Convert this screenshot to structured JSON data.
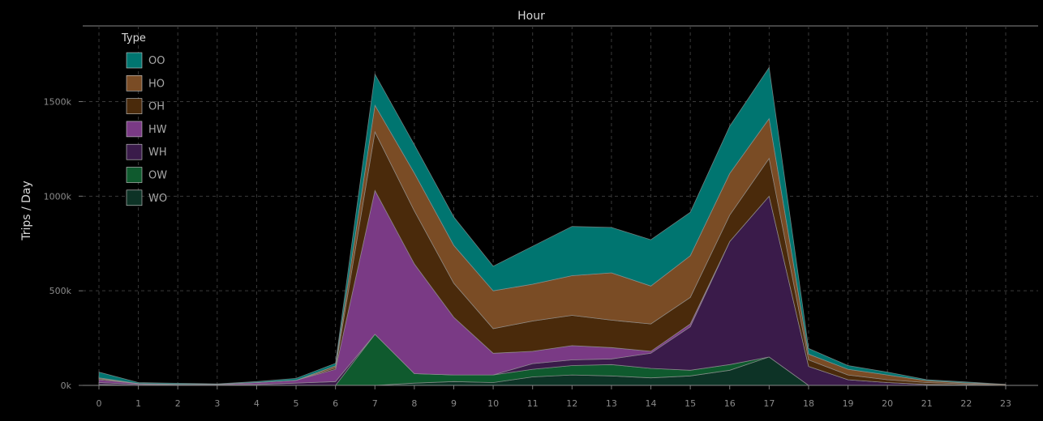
{
  "chart_data": {
    "type": "area",
    "stacked": true,
    "title": "Hour",
    "xlabel": "",
    "ylabel": "Trips / Day",
    "x": [
      0,
      1,
      2,
      3,
      4,
      5,
      6,
      7,
      8,
      9,
      10,
      11,
      12,
      13,
      14,
      15,
      16,
      17,
      18,
      19,
      20,
      21,
      22,
      23
    ],
    "x_tick_labels": [
      "0",
      "1",
      "2",
      "3",
      "4",
      "5",
      "6",
      "7",
      "8",
      "9",
      "10",
      "11",
      "12",
      "13",
      "14",
      "15",
      "16",
      "17",
      "18",
      "19",
      "20",
      "21",
      "22",
      "23"
    ],
    "ylim": [
      0,
      1900
    ],
    "y_ticks": [
      0,
      500,
      1000,
      1500
    ],
    "y_tick_labels": [
      "0k",
      "500k",
      "1000k",
      "1500k"
    ],
    "grid": true,
    "legend_title": "Type",
    "legend_position": "top-left",
    "series": [
      {
        "name": "WO",
        "color": "#0d3326",
        "values": [
          0,
          0,
          0,
          0,
          0,
          0,
          0,
          0,
          12,
          20,
          15,
          45,
          55,
          50,
          40,
          50,
          80,
          150,
          0,
          0,
          0,
          0,
          0,
          0
        ]
      },
      {
        "name": "OW",
        "color": "#0f5a2e",
        "values": [
          5,
          0,
          0,
          0,
          0,
          0,
          0,
          270,
          50,
          35,
          40,
          40,
          50,
          60,
          50,
          30,
          30,
          0,
          0,
          0,
          0,
          0,
          0,
          0
        ]
      },
      {
        "name": "WH",
        "color": "#3a1b4a",
        "values": [
          10,
          5,
          3,
          3,
          5,
          12,
          20,
          0,
          0,
          0,
          0,
          30,
          30,
          30,
          80,
          230,
          650,
          850,
          100,
          30,
          15,
          5,
          3,
          0
        ]
      },
      {
        "name": "HW",
        "color": "#7a3a85",
        "values": [
          15,
          5,
          3,
          3,
          10,
          15,
          65,
          760,
          580,
          305,
          115,
          65,
          75,
          60,
          10,
          15,
          0,
          0,
          0,
          0,
          0,
          0,
          0,
          0
        ]
      },
      {
        "name": "OH",
        "color": "#4a2a0b",
        "values": [
          5,
          0,
          0,
          0,
          0,
          0,
          8,
          310,
          280,
          180,
          130,
          160,
          160,
          145,
          145,
          140,
          140,
          200,
          35,
          25,
          15,
          10,
          5,
          0
        ]
      },
      {
        "name": "HO",
        "color": "#7a4c25",
        "values": [
          5,
          0,
          0,
          0,
          0,
          0,
          10,
          140,
          200,
          200,
          200,
          195,
          210,
          250,
          200,
          220,
          220,
          210,
          30,
          30,
          25,
          10,
          5,
          5
        ]
      },
      {
        "name": "OO",
        "color": "#007570",
        "values": [
          30,
          5,
          5,
          2,
          5,
          10,
          14,
          165,
          150,
          150,
          130,
          200,
          260,
          240,
          245,
          230,
          250,
          270,
          30,
          20,
          15,
          5,
          5,
          0
        ]
      }
    ]
  }
}
